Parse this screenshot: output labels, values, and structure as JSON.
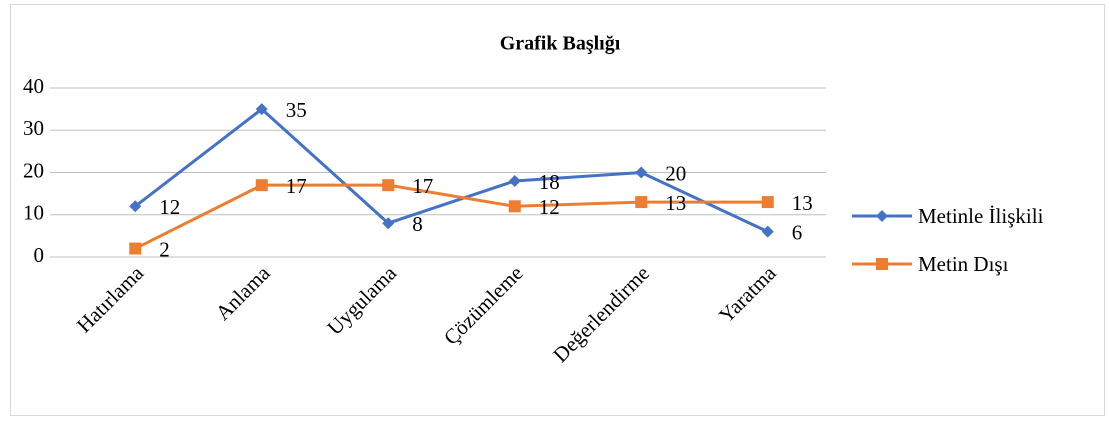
{
  "chart_data": {
    "type": "line",
    "title": "Grafik Başlığı",
    "categories": [
      "Hatırlama",
      "Anlama",
      "Uygulama",
      "Çözümleme",
      "Değerlendirme",
      "Yaratma"
    ],
    "series": [
      {
        "name": "Metinle İlişkili",
        "color": "#4472c4",
        "marker": "diamond",
        "values": [
          12,
          35,
          8,
          18,
          20,
          6
        ]
      },
      {
        "name": "Metin Dışı",
        "color": "#ed7d31",
        "marker": "square",
        "values": [
          2,
          17,
          17,
          12,
          13,
          13
        ]
      }
    ],
    "ylim": [
      0,
      40
    ],
    "yticks": [
      0,
      10,
      20,
      30,
      40
    ],
    "grid": true,
    "legend": "right"
  }
}
